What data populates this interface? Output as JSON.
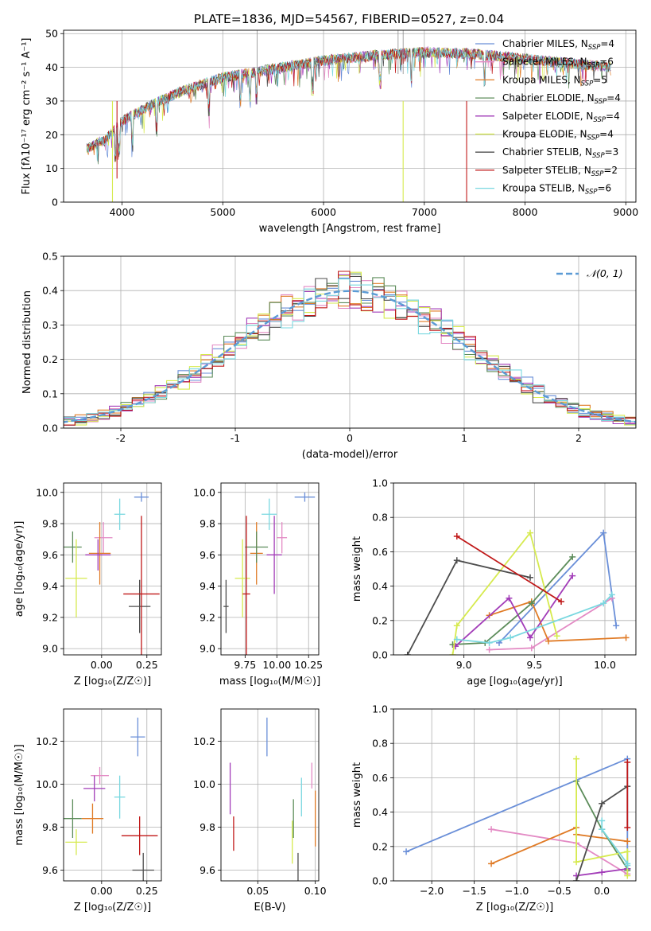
{
  "figure": {
    "title": "PLATE=1836, MJD=54567, FIBERID=0527, z=0.04"
  },
  "models": [
    {
      "name": "Chabrier MILES",
      "nssp": "4",
      "color": "#6a8fd8"
    },
    {
      "name": "Salpeter MILES",
      "nssp": "6",
      "color": "#e38ac4"
    },
    {
      "name": "Kroupa MILES",
      "nssp": "5",
      "color": "#e07b26"
    },
    {
      "name": "Chabrier ELODIE",
      "nssp": "4",
      "color": "#5c8c5a"
    },
    {
      "name": "Salpeter ELODIE",
      "nssp": "4",
      "color": "#a23cb8"
    },
    {
      "name": "Kroupa ELODIE",
      "nssp": "4",
      "color": "#d6ea4e"
    },
    {
      "name": "Chabrier STELIB",
      "nssp": "3",
      "color": "#4d4d4d"
    },
    {
      "name": "Salpeter STELIB",
      "nssp": "2",
      "color": "#c01818"
    },
    {
      "name": "Kroupa STELIB",
      "nssp": "6",
      "color": "#7ad8e0"
    }
  ],
  "chart_data": [
    {
      "id": "spectrum",
      "type": "line",
      "xlabel": "wavelength [Angstrom, rest frame]",
      "ylabel": "Flux [fλ10⁻¹⁷ erg cm⁻² s⁻¹ A⁻¹]",
      "xlim": [
        3420,
        9100
      ],
      "ylim": [
        0,
        51
      ],
      "xticks": [
        4000,
        5000,
        6000,
        7000,
        8000,
        9000
      ],
      "yticks": [
        0,
        10,
        20,
        30,
        40,
        50
      ],
      "continuum": {
        "x": [
          3650,
          3850,
          4000,
          4300,
          4600,
          5000,
          5500,
          6000,
          6500,
          7000,
          7500,
          8000,
          8500,
          8850
        ],
        "y": [
          16,
          19,
          24,
          29,
          33,
          37,
          39.5,
          42,
          43.5,
          44.5,
          44,
          42.5,
          41,
          40
        ]
      },
      "drops": [
        {
          "model": "Kroupa ELODIE",
          "x": 3905,
          "y_min": 0
        },
        {
          "model": "Salpeter STELIB",
          "x": 3950,
          "y_min": 7
        },
        {
          "model": "Kroupa ELODIE",
          "x": 6790,
          "y_min": 0
        },
        {
          "model": "Salpeter STELIB",
          "x": 7420,
          "y_min": 0
        }
      ],
      "legend_position": "upper right"
    },
    {
      "id": "residuals",
      "type": "histogram",
      "xlabel": "(data-model)/error",
      "ylabel": "Normed distribution",
      "xlim": [
        -2.5,
        2.5
      ],
      "ylim": [
        0,
        0.5
      ],
      "xticks": [
        -2,
        -1,
        0,
        1,
        2
      ],
      "yticks": [
        0.0,
        0.1,
        0.2,
        0.3,
        0.4,
        0.5
      ],
      "bin_width": 0.1,
      "reference_curve": {
        "label": "𝒩(0, 1)",
        "color": "#5b9bd5",
        "style": "dashed",
        "mean": 0,
        "sigma": 1
      },
      "legend_position": "upper right"
    },
    {
      "id": "age-vs-z",
      "type": "scatter-errorbar",
      "xlabel": "Z [log₁₀(Z/Z☉)]",
      "ylabel": "age  [log₁₀(age/yr)]",
      "xlim": [
        -0.21,
        0.33
      ],
      "ylim": [
        8.96,
        10.06
      ],
      "xticks": [
        0.0,
        0.25
      ],
      "xticklabels": [
        "0.00",
        "0.25"
      ],
      "yticks": [
        9.0,
        9.2,
        9.4,
        9.6,
        9.8,
        10.0
      ],
      "points": [
        {
          "model": "Chabrier MILES",
          "x": 0.22,
          "xerr": 0.04,
          "y": 9.97,
          "yerr": 0.03
        },
        {
          "model": "Salpeter MILES",
          "x": 0.01,
          "xerr": 0.05,
          "y": 9.71,
          "yerr": 0.1
        },
        {
          "model": "Kroupa MILES",
          "x": -0.01,
          "xerr": 0.06,
          "y": 9.61,
          "yerr": 0.2
        },
        {
          "model": "Chabrier ELODIE",
          "x": -0.16,
          "xerr": 0.05,
          "y": 9.65,
          "yerr": 0.1
        },
        {
          "model": "Salpeter ELODIE",
          "x": -0.02,
          "xerr": 0.07,
          "y": 9.6,
          "yerr": 0.1
        },
        {
          "model": "Kroupa ELODIE",
          "x": -0.14,
          "xerr": 0.06,
          "y": 9.45,
          "yerr": 0.25
        },
        {
          "model": "Chabrier STELIB",
          "x": 0.21,
          "xerr": 0.06,
          "y": 9.27,
          "yerr": 0.17
        },
        {
          "model": "Salpeter STELIB",
          "x": 0.22,
          "xerr": 0.1,
          "y": 9.35,
          "yerr": 0.5
        },
        {
          "model": "Kroupa STELIB",
          "x": 0.1,
          "xerr": 0.03,
          "y": 9.86,
          "yerr": 0.1
        }
      ]
    },
    {
      "id": "age-vs-mass",
      "type": "scatter-errorbar",
      "xlabel": "mass [log₁₀(M/M☉)]",
      "ylabel": "",
      "xlim": [
        9.56,
        10.33
      ],
      "ylim": [
        8.96,
        10.06
      ],
      "xticks": [
        9.75,
        10.0,
        10.25
      ],
      "xticklabels": [
        "9.75",
        "10.00",
        "10.25"
      ],
      "yticks": [
        9.0,
        9.2,
        9.4,
        9.6,
        9.8,
        10.0
      ],
      "points": [
        {
          "model": "Chabrier MILES",
          "x": 10.22,
          "xerr": 0.08,
          "y": 9.97,
          "yerr": 0.03
        },
        {
          "model": "Salpeter MILES",
          "x": 10.04,
          "xerr": 0.04,
          "y": 9.71,
          "yerr": 0.1
        },
        {
          "model": "Kroupa MILES",
          "x": 9.84,
          "xerr": 0.05,
          "y": 9.61,
          "yerr": 0.2
        },
        {
          "model": "Chabrier ELODIE",
          "x": 9.84,
          "xerr": 0.09,
          "y": 9.65,
          "yerr": 0.1
        },
        {
          "model": "Salpeter ELODIE",
          "x": 9.98,
          "xerr": 0.06,
          "y": 9.6,
          "yerr": 0.25
        },
        {
          "model": "Kroupa ELODIE",
          "x": 9.73,
          "xerr": 0.06,
          "y": 9.45,
          "yerr": 0.25
        },
        {
          "model": "Chabrier STELIB",
          "x": 9.6,
          "xerr": 0.02,
          "y": 9.27,
          "yerr": 0.17
        },
        {
          "model": "Salpeter STELIB",
          "x": 9.76,
          "xerr": 0.03,
          "y": 9.35,
          "yerr": 0.5
        },
        {
          "model": "Kroupa STELIB",
          "x": 9.94,
          "xerr": 0.06,
          "y": 9.86,
          "yerr": 0.1
        }
      ]
    },
    {
      "id": "weight-vs-age",
      "type": "line",
      "xlabel": "age  [log₁₀(age/yr)]",
      "ylabel": "mass weight",
      "xlim": [
        8.5,
        10.22
      ],
      "ylim": [
        0,
        1.0
      ],
      "xticks": [
        9.0,
        9.5,
        10.0
      ],
      "xticklabels": [
        "9.0",
        "9.5",
        "10.0"
      ],
      "yticks": [
        0.0,
        0.2,
        0.4,
        0.6,
        0.8,
        1.0
      ],
      "series": [
        {
          "model": "Chabrier MILES",
          "x": [
            9.25,
            9.99,
            10.08
          ],
          "y": [
            0.07,
            0.71,
            0.17
          ]
        },
        {
          "model": "Salpeter MILES",
          "x": [
            9.18,
            9.48,
            10.05
          ],
          "y": [
            0.03,
            0.04,
            0.33
          ]
        },
        {
          "model": "Kroupa MILES",
          "x": [
            9.18,
            9.48,
            9.6,
            10.15
          ],
          "y": [
            0.23,
            0.31,
            0.08,
            0.1
          ]
        },
        {
          "model": "Chabrier ELODIE",
          "x": [
            8.92,
            9.15,
            9.48,
            9.77
          ],
          "y": [
            0.06,
            0.07,
            0.3,
            0.57
          ]
        },
        {
          "model": "Salpeter ELODIE",
          "x": [
            8.94,
            9.32,
            9.47,
            9.77
          ],
          "y": [
            0.05,
            0.33,
            0.1,
            0.46
          ]
        },
        {
          "model": "Kroupa ELODIE",
          "x": [
            8.92,
            8.95,
            9.47,
            9.66
          ],
          "y": [
            0.0,
            0.17,
            0.71,
            0.11
          ]
        },
        {
          "model": "Chabrier STELIB",
          "x": [
            8.6,
            8.95,
            9.47
          ],
          "y": [
            0.0,
            0.55,
            0.45
          ]
        },
        {
          "model": "Salpeter STELIB",
          "x": [
            8.95,
            9.69
          ],
          "y": [
            0.69,
            0.31
          ]
        },
        {
          "model": "Kroupa STELIB",
          "x": [
            8.95,
            9.18,
            9.33,
            9.99,
            10.05
          ],
          "y": [
            0.09,
            0.07,
            0.1,
            0.3,
            0.35
          ]
        }
      ]
    },
    {
      "id": "mass-vs-z",
      "type": "scatter-errorbar",
      "xlabel": "Z [log₁₀(Z/Z☉)]",
      "ylabel": "mass [log₁₀(M/M☉)]",
      "xlim": [
        -0.21,
        0.33
      ],
      "ylim": [
        9.55,
        10.35
      ],
      "xticks": [
        0.0,
        0.25
      ],
      "xticklabels": [
        "0.00",
        "0.25"
      ],
      "yticks": [
        9.6,
        9.8,
        10.0,
        10.2
      ],
      "points": [
        {
          "model": "Chabrier MILES",
          "x": 0.2,
          "xerr": 0.04,
          "y": 10.22,
          "yerr": 0.09
        },
        {
          "model": "Salpeter MILES",
          "x": -0.01,
          "xerr": 0.05,
          "y": 10.04,
          "yerr": 0.04
        },
        {
          "model": "Kroupa MILES",
          "x": -0.05,
          "xerr": 0.06,
          "y": 9.84,
          "yerr": 0.07
        },
        {
          "model": "Chabrier ELODIE",
          "x": -0.16,
          "xerr": 0.05,
          "y": 9.84,
          "yerr": 0.09
        },
        {
          "model": "Salpeter ELODIE",
          "x": -0.04,
          "xerr": 0.06,
          "y": 9.98,
          "yerr": 0.06
        },
        {
          "model": "Kroupa ELODIE",
          "x": -0.14,
          "xerr": 0.06,
          "y": 9.73,
          "yerr": 0.06
        },
        {
          "model": "Chabrier STELIB",
          "x": 0.23,
          "xerr": 0.06,
          "y": 9.6,
          "yerr": 0.08
        },
        {
          "model": "Salpeter STELIB",
          "x": 0.21,
          "xerr": 0.1,
          "y": 9.76,
          "yerr": 0.09
        },
        {
          "model": "Kroupa STELIB",
          "x": 0.1,
          "xerr": 0.03,
          "y": 9.94,
          "yerr": 0.1
        }
      ]
    },
    {
      "id": "mass-vs-ebv",
      "type": "errorbar",
      "xlabel": "E(B-V)",
      "ylabel": "",
      "xlim": [
        0.018,
        0.103
      ],
      "ylim": [
        9.55,
        10.35
      ],
      "xticks": [
        0.05,
        0.1
      ],
      "xticklabels": [
        "0.05",
        "0.10"
      ],
      "yticks": [
        9.6,
        9.8,
        10.0,
        10.2
      ],
      "points": [
        {
          "model": "Chabrier MILES",
          "x": 0.058,
          "y": 10.22,
          "yerr": 0.09
        },
        {
          "model": "Salpeter MILES",
          "x": 0.097,
          "y": 10.04,
          "yerr": 0.06
        },
        {
          "model": "Kroupa MILES",
          "x": 0.1,
          "y": 9.84,
          "yerr": 0.13
        },
        {
          "model": "Chabrier ELODIE",
          "x": 0.081,
          "y": 9.84,
          "yerr": 0.09
        },
        {
          "model": "Salpeter ELODIE",
          "x": 0.026,
          "y": 9.98,
          "yerr": 0.12
        },
        {
          "model": "Kroupa ELODIE",
          "x": 0.08,
          "y": 9.73,
          "yerr": 0.1
        },
        {
          "model": "Chabrier STELIB",
          "x": 0.085,
          "y": 9.6,
          "yerr": 0.08
        },
        {
          "model": "Salpeter STELIB",
          "x": 0.029,
          "y": 9.77,
          "yerr": 0.08
        },
        {
          "model": "Kroupa STELIB",
          "x": 0.088,
          "y": 9.94,
          "yerr": 0.09
        }
      ]
    },
    {
      "id": "weight-vs-z",
      "type": "line",
      "xlabel": "Z [log₁₀(Z/Z☉)]",
      "ylabel": "mass weight",
      "xlim": [
        -2.45,
        0.4
      ],
      "ylim": [
        0,
        1.0
      ],
      "xticks": [
        -2.0,
        -1.5,
        -1.0,
        -0.5,
        0.0
      ],
      "xticklabels": [
        "−2.0",
        "−1.5",
        "−1.0",
        "−0.5",
        "0.0"
      ],
      "yticks": [
        0.0,
        0.2,
        0.4,
        0.6,
        0.8,
        1.0
      ],
      "series": [
        {
          "model": "Chabrier MILES",
          "x": [
            -2.3,
            0.3,
            0.3
          ],
          "y": [
            0.17,
            0.71,
            0.07
          ]
        },
        {
          "model": "Salpeter MILES",
          "x": [
            -1.3,
            -0.3,
            0.3
          ],
          "y": [
            0.3,
            0.22,
            0.04
          ]
        },
        {
          "model": "Kroupa MILES",
          "x": [
            -1.3,
            -0.3,
            -0.3,
            0.3
          ],
          "y": [
            0.1,
            0.31,
            0.27,
            0.23
          ]
        },
        {
          "model": "Chabrier ELODIE",
          "x": [
            -0.3,
            0.0,
            0.3,
            0.3
          ],
          "y": [
            0.58,
            0.3,
            0.07,
            0.06
          ]
        },
        {
          "model": "Salpeter ELODIE",
          "x": [
            -0.3,
            0.0,
            0.3
          ],
          "y": [
            0.03,
            0.05,
            0.07
          ]
        },
        {
          "model": "Kroupa ELODIE",
          "x": [
            -0.3,
            -0.3,
            0.3,
            0.3
          ],
          "y": [
            0.71,
            0.11,
            0.17,
            0.03
          ]
        },
        {
          "model": "Chabrier STELIB",
          "x": [
            -0.3,
            0.0,
            0.3
          ],
          "y": [
            0.0,
            0.45,
            0.55
          ]
        },
        {
          "model": "Salpeter STELIB",
          "x": [
            0.3,
            0.3
          ],
          "y": [
            0.69,
            0.31
          ]
        },
        {
          "model": "Kroupa STELIB",
          "x": [
            0.0,
            0.0,
            0.3,
            0.3
          ],
          "y": [
            0.35,
            0.3,
            0.1,
            0.09
          ]
        }
      ]
    }
  ]
}
